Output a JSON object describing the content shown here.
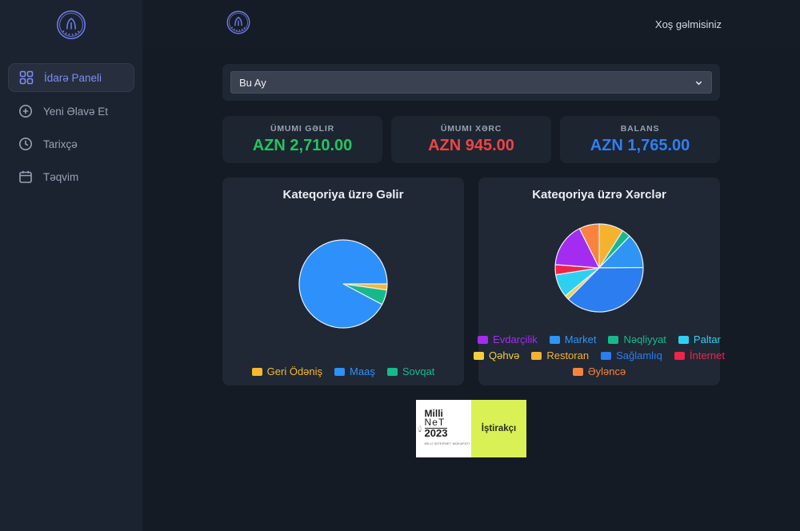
{
  "header": {
    "welcome": "Xoş gəlmisiniz"
  },
  "sidebar": {
    "items": [
      {
        "label": "İdarə Paneli",
        "icon": "grid-icon",
        "active": true
      },
      {
        "label": "Yeni Əlavə Et",
        "icon": "plus-circle-icon",
        "active": false
      },
      {
        "label": "Tarixçə",
        "icon": "clock-icon",
        "active": false
      },
      {
        "label": "Təqvim",
        "icon": "calendar-icon",
        "active": false
      }
    ]
  },
  "filters": {
    "period": {
      "value": "Bu Ay"
    }
  },
  "summary_cards": [
    {
      "label": "ÜMUMI GƏLIR",
      "value": "AZN 2,710.00",
      "color": "#22c55e"
    },
    {
      "label": "ÜMUMI XƏRC",
      "value": "AZN 945.00",
      "color": "#ef4444"
    },
    {
      "label": "BALANS",
      "value": "AZN 1,765.00",
      "color": "#2f7ff2"
    }
  ],
  "chart_data": [
    {
      "type": "pie",
      "title": "Kateqoriya üzrə Gəlir",
      "currency": "AZN",
      "total": 2710,
      "rotation_deg": 90,
      "slices": [
        {
          "label": "Geri Ödəniş",
          "value": 60,
          "color": "#f5b82e"
        },
        {
          "label": "Sovqat",
          "value": 150,
          "color": "#17b98c"
        },
        {
          "label": "Maaş",
          "value": 2500,
          "color": "#2e90fa"
        }
      ],
      "legend_position": "bottom",
      "legend_rows": [
        [
          {
            "label": "Geri Ödəniş",
            "color": "#f5b82e"
          },
          {
            "label": "Maaş",
            "color": "#2e90fa"
          },
          {
            "label": "Sovqat",
            "color": "#17b98c"
          }
        ]
      ]
    },
    {
      "type": "pie",
      "title": "Kateqoriya üzrə Xərclər",
      "currency": "AZN",
      "total": 945,
      "rotation_deg": 0,
      "slices": [
        {
          "label": "Restoran",
          "value": 85,
          "color": "#f5b22e"
        },
        {
          "label": "Nəqliyyat",
          "value": 30,
          "color": "#17b98c"
        },
        {
          "label": "Market",
          "value": 120,
          "color": "#2e95f6"
        },
        {
          "label": "Sağlamlıq",
          "value": 355,
          "color": "#2b7df0"
        },
        {
          "label": "Qəhvə",
          "value": 15,
          "color": "#f3cf3d"
        },
        {
          "label": "Paltar",
          "value": 80,
          "color": "#2ed0f2"
        },
        {
          "label": "İnternet",
          "value": 35,
          "color": "#f02448"
        },
        {
          "label": "Evdarçilik",
          "value": 155,
          "color": "#a42cf0"
        },
        {
          "label": "Əyləncə",
          "value": 70,
          "color": "#f9823e"
        }
      ],
      "legend_position": "bottom",
      "legend_rows": [
        [
          {
            "label": "Evdarçilik",
            "color": "#a42cf0"
          },
          {
            "label": "Market",
            "color": "#2e95f6"
          },
          {
            "label": "Nəqliyyat",
            "color": "#17b98c"
          },
          {
            "label": "Paltar",
            "color": "#2ed0f2"
          }
        ],
        [
          {
            "label": "Qəhvə",
            "color": "#f3cf3d"
          },
          {
            "label": "Restoran",
            "color": "#f5b22e"
          },
          {
            "label": "Sağlamlıq",
            "color": "#2b7df0"
          },
          {
            "label": "İnternet",
            "color": "#f02448"
          }
        ],
        [
          {
            "label": "Əyləncə",
            "color": "#f9823e"
          }
        ]
      ]
    }
  ],
  "footer_badge": {
    "brand_lines": [
      "Milli",
      "NeT",
      "2023"
    ],
    "caption": "MİLLİ İNTERNET MÜKAFATI",
    "tag": "İştirakçı",
    "tag_bg": "#d9f155"
  },
  "theme": {
    "accent": "#7e8bf3",
    "logo_stroke": "#6b79e8"
  }
}
